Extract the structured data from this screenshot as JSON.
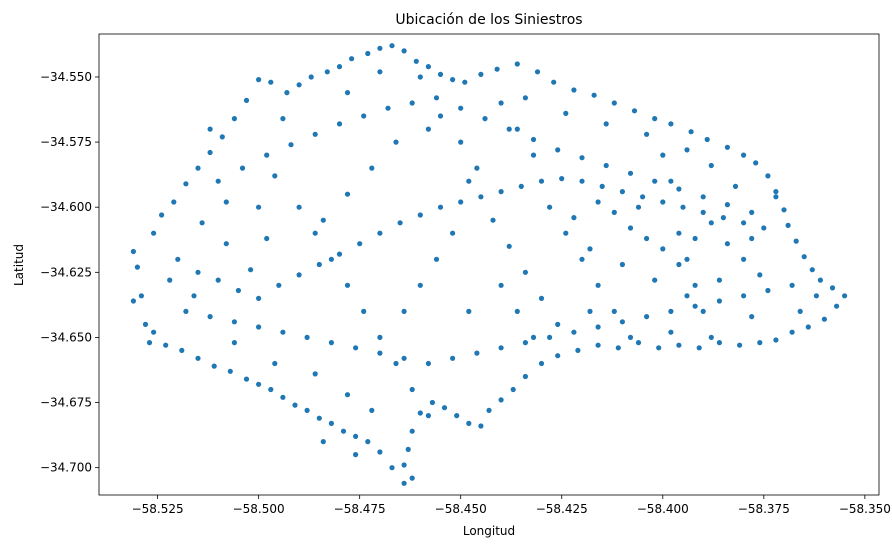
{
  "chart_data": {
    "type": "scatter",
    "title": "Ubicación de los Siniestros",
    "xlabel": "Longitud",
    "ylabel": "Latitud",
    "xlim": [
      -58.5395,
      -58.3465
    ],
    "ylim": [
      -34.7105,
      -34.5335
    ],
    "xticks": [
      -58.525,
      -58.5,
      -58.475,
      -58.45,
      -58.425,
      -58.4,
      -58.375,
      -58.35
    ],
    "xtick_labels": [
      "−58.525",
      "−58.500",
      "−58.475",
      "−58.450",
      "−58.425",
      "−58.400",
      "−58.375",
      "−58.350"
    ],
    "yticks": [
      -34.55,
      -34.575,
      -34.6,
      -34.625,
      -34.65,
      -34.675,
      -34.7
    ],
    "ytick_labels": [
      "−34.550",
      "−34.575",
      "−34.600",
      "−34.625",
      "−34.650",
      "−34.675",
      "−34.700"
    ],
    "grid": false,
    "color": "#1f77b4",
    "series": [
      {
        "points": [
          [
            -58.531,
            -34.617
          ],
          [
            -58.53,
            -34.623
          ],
          [
            -58.529,
            -34.634
          ],
          [
            -58.531,
            -34.636
          ],
          [
            -58.528,
            -34.645
          ],
          [
            -58.527,
            -34.652
          ],
          [
            -58.526,
            -34.61
          ],
          [
            -58.524,
            -34.603
          ],
          [
            -58.521,
            -34.598
          ],
          [
            -58.518,
            -34.591
          ],
          [
            -58.515,
            -34.585
          ],
          [
            -58.512,
            -34.579
          ],
          [
            -58.509,
            -34.573
          ],
          [
            -58.506,
            -34.566
          ],
          [
            -58.503,
            -34.559
          ],
          [
            -58.5,
            -34.551
          ],
          [
            -58.497,
            -34.552
          ],
          [
            -58.493,
            -34.556
          ],
          [
            -58.49,
            -34.553
          ],
          [
            -58.487,
            -34.55
          ],
          [
            -58.483,
            -34.548
          ],
          [
            -58.48,
            -34.546
          ],
          [
            -58.477,
            -34.543
          ],
          [
            -58.473,
            -34.541
          ],
          [
            -58.47,
            -34.539
          ],
          [
            -58.467,
            -34.538
          ],
          [
            -58.464,
            -34.54
          ],
          [
            -58.461,
            -34.544
          ],
          [
            -58.458,
            -34.546
          ],
          [
            -58.455,
            -34.549
          ],
          [
            -58.452,
            -34.551
          ],
          [
            -58.449,
            -34.552
          ],
          [
            -58.445,
            -34.549
          ],
          [
            -58.441,
            -34.547
          ],
          [
            -58.436,
            -34.545
          ],
          [
            -58.431,
            -34.548
          ],
          [
            -58.427,
            -34.552
          ],
          [
            -58.422,
            -34.555
          ],
          [
            -58.417,
            -34.557
          ],
          [
            -58.412,
            -34.56
          ],
          [
            -58.407,
            -34.563
          ],
          [
            -58.402,
            -34.566
          ],
          [
            -58.398,
            -34.568
          ],
          [
            -58.393,
            -34.571
          ],
          [
            -58.389,
            -34.574
          ],
          [
            -58.384,
            -34.577
          ],
          [
            -58.38,
            -34.58
          ],
          [
            -58.377,
            -34.583
          ],
          [
            -58.374,
            -34.588
          ],
          [
            -58.372,
            -34.594
          ],
          [
            -58.37,
            -34.601
          ],
          [
            -58.369,
            -34.607
          ],
          [
            -58.367,
            -34.613
          ],
          [
            -58.365,
            -34.619
          ],
          [
            -58.363,
            -34.624
          ],
          [
            -58.361,
            -34.628
          ],
          [
            -58.358,
            -34.631
          ],
          [
            -58.355,
            -34.634
          ],
          [
            -58.357,
            -34.638
          ],
          [
            -58.36,
            -34.643
          ],
          [
            -58.364,
            -34.646
          ],
          [
            -58.368,
            -34.648
          ],
          [
            -58.372,
            -34.651
          ],
          [
            -58.376,
            -34.652
          ],
          [
            -58.381,
            -34.653
          ],
          [
            -58.386,
            -34.652
          ],
          [
            -58.391,
            -34.654
          ],
          [
            -58.396,
            -34.653
          ],
          [
            -58.401,
            -34.654
          ],
          [
            -58.406,
            -34.652
          ],
          [
            -58.411,
            -34.654
          ],
          [
            -58.416,
            -34.653
          ],
          [
            -58.421,
            -34.655
          ],
          [
            -58.426,
            -34.657
          ],
          [
            -58.43,
            -34.66
          ],
          [
            -58.434,
            -34.665
          ],
          [
            -58.437,
            -34.67
          ],
          [
            -58.44,
            -34.674
          ],
          [
            -58.443,
            -34.678
          ],
          [
            -58.445,
            -34.684
          ],
          [
            -58.448,
            -34.683
          ],
          [
            -58.451,
            -34.68
          ],
          [
            -58.454,
            -34.677
          ],
          [
            -58.457,
            -34.675
          ],
          [
            -58.46,
            -34.679
          ],
          [
            -58.462,
            -34.686
          ],
          [
            -58.463,
            -34.693
          ],
          [
            -58.464,
            -34.699
          ],
          [
            -58.462,
            -34.704
          ],
          [
            -58.464,
            -34.706
          ],
          [
            -58.467,
            -34.7
          ],
          [
            -58.47,
            -34.694
          ],
          [
            -58.473,
            -34.69
          ],
          [
            -58.476,
            -34.688
          ],
          [
            -58.479,
            -34.686
          ],
          [
            -58.482,
            -34.683
          ],
          [
            -58.485,
            -34.681
          ],
          [
            -58.488,
            -34.678
          ],
          [
            -58.491,
            -34.676
          ],
          [
            -58.494,
            -34.673
          ],
          [
            -58.497,
            -34.67
          ],
          [
            -58.5,
            -34.668
          ],
          [
            -58.503,
            -34.666
          ],
          [
            -58.507,
            -34.663
          ],
          [
            -58.511,
            -34.661
          ],
          [
            -58.515,
            -34.658
          ],
          [
            -58.519,
            -34.655
          ],
          [
            -58.523,
            -34.653
          ],
          [
            -58.526,
            -34.648
          ],
          [
            -58.52,
            -34.62
          ],
          [
            -58.515,
            -34.625
          ],
          [
            -58.51,
            -34.628
          ],
          [
            -58.505,
            -34.632
          ],
          [
            -58.5,
            -34.635
          ],
          [
            -58.495,
            -34.63
          ],
          [
            -58.49,
            -34.626
          ],
          [
            -58.485,
            -34.622
          ],
          [
            -58.48,
            -34.618
          ],
          [
            -58.475,
            -34.614
          ],
          [
            -58.47,
            -34.61
          ],
          [
            -58.465,
            -34.606
          ],
          [
            -58.46,
            -34.603
          ],
          [
            -58.455,
            -34.6
          ],
          [
            -58.45,
            -34.598
          ],
          [
            -58.445,
            -34.596
          ],
          [
            -58.44,
            -34.594
          ],
          [
            -58.435,
            -34.592
          ],
          [
            -58.43,
            -34.59
          ],
          [
            -58.425,
            -34.589
          ],
          [
            -58.42,
            -34.59
          ],
          [
            -58.415,
            -34.592
          ],
          [
            -58.41,
            -34.594
          ],
          [
            -58.405,
            -34.596
          ],
          [
            -58.4,
            -34.598
          ],
          [
            -58.395,
            -34.6
          ],
          [
            -58.39,
            -34.602
          ],
          [
            -58.385,
            -34.604
          ],
          [
            -58.38,
            -34.606
          ],
          [
            -58.375,
            -34.608
          ],
          [
            -58.518,
            -34.64
          ],
          [
            -58.512,
            -34.642
          ],
          [
            -58.506,
            -34.644
          ],
          [
            -58.5,
            -34.646
          ],
          [
            -58.494,
            -34.648
          ],
          [
            -58.488,
            -34.65
          ],
          [
            -58.482,
            -34.652
          ],
          [
            -58.476,
            -34.654
          ],
          [
            -58.47,
            -34.656
          ],
          [
            -58.464,
            -34.658
          ],
          [
            -58.458,
            -34.66
          ],
          [
            -58.452,
            -34.658
          ],
          [
            -58.446,
            -34.656
          ],
          [
            -58.44,
            -34.654
          ],
          [
            -58.434,
            -34.652
          ],
          [
            -58.428,
            -34.65
          ],
          [
            -58.422,
            -34.648
          ],
          [
            -58.416,
            -34.646
          ],
          [
            -58.41,
            -34.644
          ],
          [
            -58.404,
            -34.642
          ],
          [
            -58.398,
            -34.64
          ],
          [
            -58.392,
            -34.638
          ],
          [
            -58.386,
            -34.636
          ],
          [
            -58.38,
            -34.634
          ],
          [
            -58.374,
            -34.632
          ],
          [
            -58.368,
            -34.63
          ],
          [
            -58.51,
            -34.59
          ],
          [
            -58.504,
            -34.585
          ],
          [
            -58.498,
            -34.58
          ],
          [
            -58.492,
            -34.576
          ],
          [
            -58.486,
            -34.572
          ],
          [
            -58.48,
            -34.568
          ],
          [
            -58.474,
            -34.565
          ],
          [
            -58.468,
            -34.562
          ],
          [
            -58.462,
            -34.56
          ],
          [
            -58.456,
            -34.558
          ],
          [
            -58.45,
            -34.562
          ],
          [
            -58.444,
            -34.566
          ],
          [
            -58.438,
            -34.57
          ],
          [
            -58.432,
            -34.574
          ],
          [
            -58.426,
            -34.578
          ],
          [
            -58.42,
            -34.581
          ],
          [
            -58.414,
            -34.584
          ],
          [
            -58.408,
            -34.587
          ],
          [
            -58.402,
            -34.59
          ],
          [
            -58.396,
            -34.593
          ],
          [
            -58.39,
            -34.596
          ],
          [
            -58.384,
            -34.599
          ],
          [
            -58.378,
            -34.602
          ],
          [
            -58.49,
            -34.6
          ],
          [
            -58.486,
            -34.61
          ],
          [
            -58.482,
            -34.62
          ],
          [
            -58.478,
            -34.63
          ],
          [
            -58.474,
            -34.64
          ],
          [
            -58.47,
            -34.65
          ],
          [
            -58.466,
            -34.66
          ],
          [
            -58.462,
            -34.67
          ],
          [
            -58.458,
            -34.68
          ],
          [
            -58.44,
            -34.56
          ],
          [
            -58.436,
            -34.57
          ],
          [
            -58.432,
            -34.58
          ],
          [
            -58.428,
            -34.6
          ],
          [
            -58.424,
            -34.61
          ],
          [
            -58.42,
            -34.62
          ],
          [
            -58.416,
            -34.63
          ],
          [
            -58.412,
            -34.64
          ],
          [
            -58.4,
            -34.58
          ],
          [
            -58.398,
            -34.59
          ],
          [
            -58.396,
            -34.61
          ],
          [
            -58.394,
            -34.62
          ],
          [
            -58.392,
            -34.63
          ],
          [
            -58.39,
            -34.64
          ],
          [
            -58.388,
            -34.65
          ],
          [
            -58.46,
            -34.55
          ],
          [
            -58.455,
            -34.565
          ],
          [
            -58.45,
            -34.575
          ],
          [
            -58.446,
            -34.585
          ],
          [
            -58.442,
            -34.605
          ],
          [
            -58.438,
            -34.615
          ],
          [
            -58.434,
            -34.625
          ],
          [
            -58.43,
            -34.635
          ],
          [
            -58.426,
            -34.645
          ],
          [
            -58.5,
            -34.6
          ],
          [
            -58.498,
            -34.612
          ],
          [
            -58.502,
            -34.624
          ],
          [
            -58.508,
            -34.614
          ],
          [
            -58.514,
            -34.606
          ],
          [
            -58.522,
            -34.628
          ],
          [
            -58.516,
            -34.634
          ],
          [
            -58.506,
            -34.652
          ],
          [
            -58.496,
            -34.66
          ],
          [
            -58.486,
            -34.664
          ],
          [
            -58.478,
            -34.672
          ],
          [
            -58.472,
            -34.678
          ],
          [
            -58.484,
            -34.69
          ],
          [
            -58.476,
            -34.695
          ],
          [
            -58.412,
            -34.602
          ],
          [
            -58.408,
            -34.608
          ],
          [
            -58.404,
            -34.612
          ],
          [
            -58.4,
            -34.616
          ],
          [
            -58.396,
            -34.622
          ],
          [
            -58.392,
            -34.612
          ],
          [
            -58.388,
            -34.606
          ],
          [
            -58.384,
            -34.614
          ],
          [
            -58.38,
            -34.62
          ],
          [
            -58.376,
            -34.626
          ],
          [
            -58.386,
            -34.628
          ],
          [
            -58.394,
            -34.634
          ],
          [
            -58.402,
            -34.628
          ],
          [
            -58.41,
            -34.622
          ],
          [
            -58.418,
            -34.616
          ],
          [
            -58.422,
            -34.604
          ],
          [
            -58.416,
            -34.598
          ],
          [
            -58.406,
            -34.6
          ],
          [
            -58.372,
            -34.596
          ],
          [
            -58.378,
            -34.612
          ],
          [
            -58.382,
            -34.592
          ],
          [
            -58.388,
            -34.584
          ],
          [
            -58.394,
            -34.578
          ],
          [
            -58.404,
            -34.572
          ],
          [
            -58.414,
            -34.568
          ],
          [
            -58.424,
            -34.564
          ],
          [
            -58.434,
            -34.558
          ],
          [
            -58.466,
            -34.575
          ],
          [
            -58.472,
            -34.585
          ],
          [
            -58.478,
            -34.595
          ],
          [
            -58.484,
            -34.605
          ],
          [
            -58.496,
            -34.588
          ],
          [
            -58.508,
            -34.598
          ],
          [
            -58.512,
            -34.57
          ],
          [
            -58.494,
            -34.566
          ],
          [
            -58.478,
            -34.556
          ],
          [
            -58.47,
            -34.548
          ],
          [
            -58.458,
            -34.57
          ],
          [
            -58.448,
            -34.59
          ],
          [
            -58.452,
            -34.61
          ],
          [
            -58.456,
            -34.62
          ],
          [
            -58.46,
            -34.63
          ],
          [
            -58.464,
            -34.64
          ],
          [
            -58.448,
            -34.64
          ],
          [
            -58.44,
            -34.63
          ],
          [
            -58.436,
            -34.64
          ],
          [
            -58.432,
            -34.65
          ],
          [
            -58.418,
            -34.64
          ],
          [
            -58.408,
            -34.65
          ],
          [
            -58.398,
            -34.648
          ],
          [
            -58.378,
            -34.642
          ],
          [
            -58.366,
            -34.64
          ],
          [
            -58.362,
            -34.634
          ]
        ]
      }
    ]
  }
}
